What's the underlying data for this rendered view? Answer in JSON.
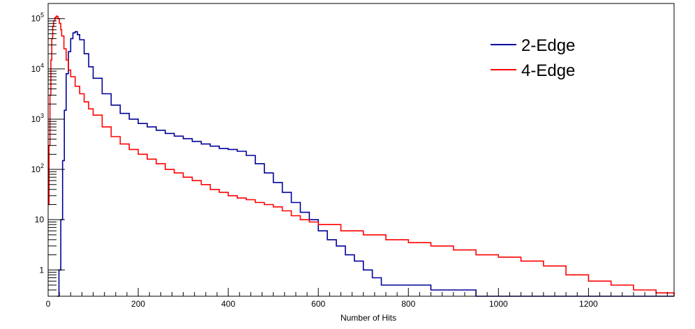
{
  "chart_data": {
    "type": "line",
    "title": "",
    "xlabel": "Number of Hits",
    "ylabel": "",
    "xlim": [
      0,
      1390
    ],
    "ylim": [
      0.3,
      200000
    ],
    "y_scale": "log",
    "grid": false,
    "legend_position": "top-right",
    "x_ticks": [
      0,
      200,
      400,
      600,
      800,
      1000,
      1200
    ],
    "x_tick_labels": [
      "0",
      "200",
      "400",
      "600",
      "800",
      "1000",
      "1200"
    ],
    "y_ticks": [
      1,
      10,
      100,
      1000,
      10000,
      100000
    ],
    "y_tick_labels": [
      {
        "base": "",
        "exp": "",
        "text": "1"
      },
      {
        "base": "",
        "exp": "",
        "text": "10"
      },
      {
        "base": "10",
        "exp": "2",
        "text": ""
      },
      {
        "base": "10",
        "exp": "3",
        "text": ""
      },
      {
        "base": "10",
        "exp": "4",
        "text": ""
      },
      {
        "base": "10",
        "exp": "5",
        "text": ""
      }
    ],
    "series": [
      {
        "name": "2-Edge",
        "color": "#000099",
        "x": [
          20,
          24,
          28,
          32,
          36,
          40,
          45,
          50,
          55,
          60,
          65,
          70,
          80,
          90,
          100,
          120,
          140,
          160,
          180,
          200,
          220,
          240,
          260,
          280,
          300,
          320,
          340,
          360,
          380,
          400,
          420,
          440,
          460,
          480,
          500,
          520,
          540,
          560,
          580,
          600,
          620,
          640,
          660,
          680,
          700,
          720,
          740,
          760,
          780,
          800,
          850,
          900,
          950,
          1000,
          1050,
          1100,
          1150,
          1180,
          1200,
          1250,
          1300,
          1350,
          1380
        ],
        "values": [
          0.3,
          1,
          10,
          150,
          1500,
          8000,
          22000,
          40000,
          52000,
          55000,
          48000,
          38000,
          20000,
          11000,
          6500,
          3200,
          1900,
          1300,
          1000,
          820,
          700,
          600,
          520,
          460,
          410,
          360,
          320,
          290,
          260,
          250,
          230,
          190,
          130,
          85,
          55,
          35,
          22,
          14,
          10,
          6,
          4,
          3,
          2,
          1.5,
          1,
          0.7,
          0.5,
          0.5,
          0.5,
          0.5,
          0.4,
          0.4,
          0.3,
          0.3,
          0.3,
          0.3,
          0.3,
          0.3,
          0.3,
          0.3,
          0.3,
          0.3,
          0.3
        ]
      },
      {
        "name": "4-Edge",
        "color": "#ff0000",
        "x": [
          0,
          2,
          4,
          6,
          8,
          10,
          12,
          15,
          18,
          20,
          22,
          25,
          28,
          30,
          35,
          40,
          45,
          50,
          60,
          70,
          80,
          90,
          100,
          120,
          140,
          160,
          180,
          200,
          220,
          240,
          260,
          280,
          300,
          320,
          340,
          360,
          380,
          400,
          420,
          440,
          460,
          480,
          500,
          520,
          540,
          560,
          580,
          600,
          650,
          700,
          750,
          800,
          850,
          900,
          950,
          1000,
          1050,
          1100,
          1150,
          1200,
          1250,
          1300,
          1350,
          1390
        ],
        "values": [
          20,
          300,
          3000,
          15000,
          40000,
          70000,
          90000,
          105000,
          112000,
          110000,
          100000,
          80000,
          60000,
          45000,
          25000,
          15000,
          9500,
          7000,
          4500,
          3200,
          2200,
          1600,
          1200,
          700,
          450,
          320,
          250,
          200,
          160,
          130,
          100,
          85,
          70,
          60,
          50,
          40,
          35,
          30,
          27,
          25,
          22,
          20,
          18,
          15,
          12,
          10,
          9,
          8,
          6,
          5,
          4,
          3.5,
          3,
          2.5,
          2,
          1.8,
          1.5,
          1.2,
          0.8,
          0.6,
          0.5,
          0.4,
          0.35,
          0.3
        ]
      }
    ]
  }
}
